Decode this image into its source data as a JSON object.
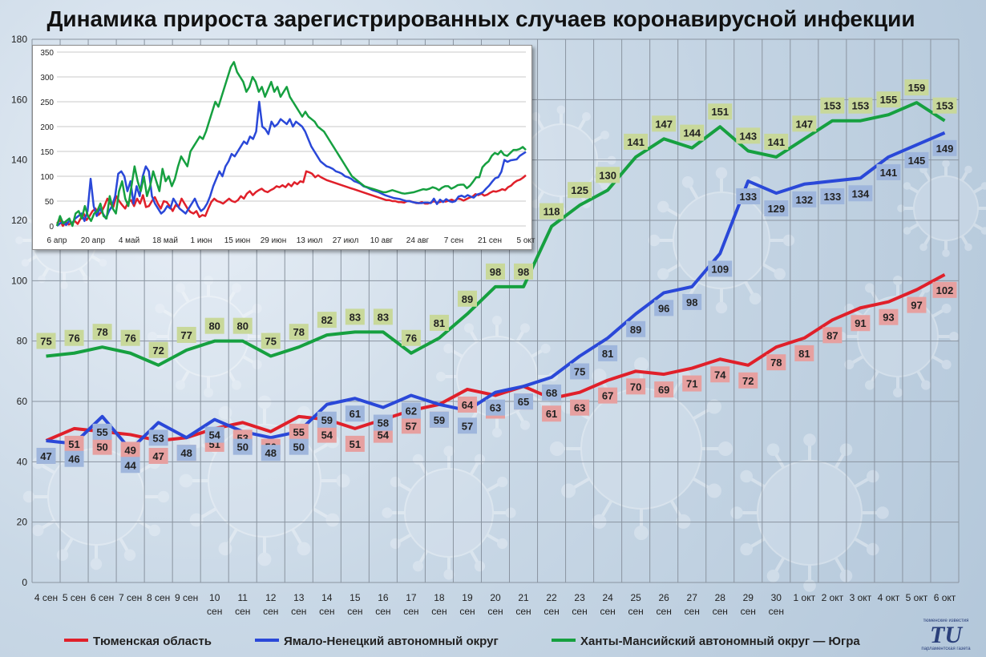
{
  "title": "Динамика прироста зарегистрированных случаев коронавирусной инфекции",
  "logo": {
    "small": "тюменские известия",
    "main": "TU",
    "caption": "парламентская газета"
  },
  "chart_data": [
    {
      "type": "line",
      "categories": [
        "4 сен",
        "5 сен",
        "6 сен",
        "7 сен",
        "8 сен",
        "9 сен",
        "10 сен",
        "11 сен",
        "12 сен",
        "13 сен",
        "14 сен",
        "15 сен",
        "16 сен",
        "17 сен",
        "18 сен",
        "19 сен",
        "20 сен",
        "21 сен",
        "22 сен",
        "23 сен",
        "24 сен",
        "25 сен",
        "26 сен",
        "27 сен",
        "28 сен",
        "29 сен",
        "30 сен",
        "1 окт",
        "2 окт",
        "3 окт",
        "4 окт",
        "5 окт",
        "6 окт"
      ],
      "ylim": [
        0,
        180
      ],
      "yticks": [
        0,
        20,
        40,
        60,
        80,
        100,
        120,
        140,
        160,
        180
      ],
      "grid": true,
      "legend": "bottom",
      "series": [
        {
          "name": "Тюменская область",
          "color": "#e0202a",
          "label_bg": "#e6a0a0",
          "label_pos": "below",
          "values": [
            47,
            51,
            50,
            49,
            47,
            48,
            51,
            53,
            50,
            55,
            54,
            51,
            54,
            57,
            59,
            64,
            62,
            65,
            61,
            63,
            67,
            70,
            69,
            71,
            74,
            72,
            78,
            81,
            87,
            91,
            93,
            97,
            102
          ]
        },
        {
          "name": "Ямало-Ненецкий автономный округ",
          "color": "#2a48d8",
          "label_bg": "#9fb6dc",
          "label_pos": "below",
          "values": [
            47,
            46,
            55,
            44,
            53,
            48,
            54,
            50,
            48,
            50,
            59,
            61,
            58,
            62,
            59,
            57,
            63,
            65,
            68,
            75,
            81,
            89,
            96,
            98,
            109,
            133,
            129,
            132,
            133,
            134,
            141,
            145,
            149
          ]
        },
        {
          "name": "Ханты-Мансийский автономный округ — Югра",
          "color": "#16a040",
          "label_bg": "#c8d89a",
          "label_pos": "above",
          "values": [
            75,
            76,
            78,
            76,
            72,
            77,
            80,
            80,
            75,
            78,
            82,
            83,
            83,
            76,
            81,
            89,
            98,
            98,
            118,
            125,
            130,
            141,
            147,
            144,
            151,
            143,
            141,
            147,
            153,
            153,
            155,
            159,
            153
          ]
        }
      ]
    },
    {
      "type": "line",
      "x_tick_labels": [
        "6 апр",
        "20 апр",
        "4 май",
        "18 май",
        "1 июн",
        "15 июн",
        "29 июн",
        "13 июл",
        "27 июл",
        "10 авг",
        "24 авг",
        "7 сен",
        "21 сен",
        "5 окт"
      ],
      "ylim": [
        0,
        350
      ],
      "yticks": [
        0,
        50,
        100,
        150,
        200,
        250,
        300,
        350
      ],
      "grid": true,
      "series": [
        {
          "color": "#e0202a",
          "values": [
            5,
            12,
            0,
            8,
            3,
            6,
            10,
            4,
            15,
            25,
            12,
            20,
            30,
            35,
            22,
            28,
            40,
            55,
            45,
            38,
            60,
            50,
            42,
            35,
            48,
            52,
            40,
            55,
            45,
            62,
            38,
            40,
            50,
            58,
            45,
            35,
            50,
            48,
            40,
            30,
            42,
            38,
            55,
            45,
            35,
            28,
            25,
            30,
            18,
            22,
            20,
            35,
            48,
            55,
            50,
            48,
            45,
            50,
            55,
            50,
            48,
            52,
            60,
            55,
            65,
            70,
            62,
            68,
            72,
            75,
            70,
            68,
            72,
            75,
            80,
            78,
            82,
            78,
            85,
            80,
            88,
            84,
            90,
            88,
            110,
            108,
            105,
            98,
            102,
            98,
            95,
            92,
            90,
            88,
            86,
            84,
            82,
            80,
            78,
            76,
            74,
            72,
            70,
            68,
            66,
            64,
            62,
            60,
            58,
            56,
            54,
            52,
            52,
            50,
            50,
            48,
            48,
            47,
            50,
            50,
            48,
            46,
            46,
            48,
            45,
            45,
            47,
            50,
            47,
            48,
            50,
            49,
            51,
            53,
            50,
            55,
            54,
            51,
            54,
            57,
            59,
            64,
            62,
            65,
            61,
            63,
            67,
            70,
            69,
            71,
            74,
            72,
            78,
            81,
            87,
            91,
            93,
            97,
            102
          ]
        },
        {
          "color": "#2a48d8",
          "values": [
            0,
            5,
            8,
            2,
            10,
            6,
            15,
            20,
            25,
            10,
            30,
            95,
            40,
            20,
            35,
            25,
            15,
            30,
            40,
            60,
            105,
            110,
            100,
            70,
            90,
            45,
            80,
            60,
            100,
            120,
            110,
            60,
            45,
            35,
            25,
            30,
            40,
            35,
            55,
            45,
            35,
            30,
            25,
            35,
            45,
            55,
            40,
            30,
            35,
            45,
            60,
            80,
            95,
            110,
            100,
            120,
            130,
            145,
            140,
            150,
            160,
            170,
            165,
            180,
            175,
            190,
            250,
            200,
            195,
            185,
            210,
            200,
            205,
            215,
            210,
            205,
            215,
            200,
            210,
            205,
            200,
            190,
            175,
            160,
            150,
            140,
            130,
            125,
            120,
            118,
            115,
            110,
            108,
            105,
            100,
            98,
            95,
            90,
            88,
            85,
            80,
            78,
            75,
            72,
            70,
            68,
            65,
            62,
            60,
            58,
            56,
            55,
            54,
            52,
            50,
            50,
            48,
            47,
            46,
            46,
            47,
            47,
            46,
            55,
            44,
            53,
            48,
            54,
            50,
            48,
            50,
            59,
            61,
            58,
            62,
            59,
            57,
            63,
            65,
            68,
            75,
            81,
            89,
            96,
            98,
            109,
            133,
            129,
            132,
            133,
            134,
            141,
            145,
            149
          ]
        },
        {
          "color": "#16a040",
          "values": [
            0,
            20,
            5,
            10,
            15,
            0,
            25,
            30,
            15,
            40,
            20,
            10,
            25,
            30,
            45,
            20,
            15,
            60,
            35,
            25,
            70,
            90,
            55,
            40,
            80,
            120,
            90,
            70,
            100,
            60,
            80,
            110,
            90,
            70,
            115,
            90,
            100,
            80,
            95,
            120,
            140,
            130,
            120,
            150,
            160,
            170,
            180,
            175,
            190,
            210,
            230,
            250,
            240,
            260,
            280,
            300,
            320,
            330,
            310,
            300,
            290,
            270,
            280,
            300,
            290,
            270,
            280,
            260,
            275,
            290,
            270,
            280,
            260,
            270,
            280,
            260,
            250,
            240,
            230,
            220,
            230,
            220,
            215,
            210,
            200,
            195,
            190,
            180,
            170,
            160,
            150,
            140,
            130,
            120,
            110,
            100,
            95,
            90,
            85,
            80,
            78,
            76,
            74,
            72,
            70,
            68,
            68,
            70,
            72,
            70,
            68,
            66,
            65,
            66,
            67,
            68,
            70,
            72,
            74,
            73,
            75,
            78,
            76,
            72,
            77,
            80,
            80,
            75,
            78,
            82,
            83,
            83,
            76,
            81,
            89,
            98,
            98,
            118,
            125,
            130,
            141,
            147,
            144,
            151,
            143,
            141,
            147,
            153,
            153,
            155,
            159,
            153
          ]
        }
      ]
    }
  ]
}
